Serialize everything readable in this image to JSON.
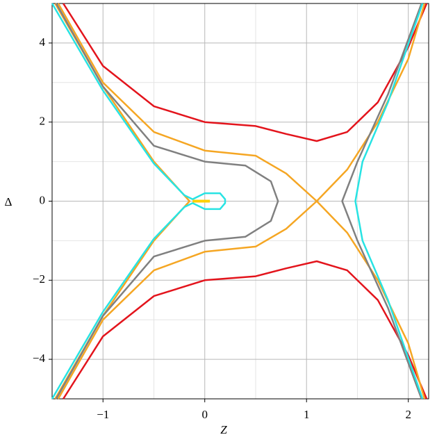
{
  "chart_data": {
    "type": "line",
    "xlabel": "Z",
    "ylabel": "Δ",
    "xlim": [
      -1.5,
      2.2
    ],
    "ylim": [
      -5,
      5
    ],
    "xticks": [
      {
        "value": -1,
        "label": "−1"
      },
      0,
      1,
      2
    ],
    "yticks": [
      {
        "value": -4,
        "label": "−4"
      },
      {
        "value": -2,
        "label": "−2"
      },
      0,
      2,
      4
    ],
    "xminor": [
      -0.5,
      0.5,
      1.5
    ],
    "yminor": [
      -3,
      -1,
      1,
      3
    ],
    "grid": true,
    "series": [
      {
        "color": "#e3141c",
        "x": [
          -1.39,
          -1,
          -0.5,
          0,
          0.5,
          0.8,
          1.1,
          1.4,
          1.7,
          2,
          2.18,
          null,
          -1.39,
          -1,
          -0.5,
          0,
          0.5,
          0.8,
          1.1,
          1.4,
          1.7,
          2,
          2.18
        ],
        "values": [
          5,
          3.42,
          2.4,
          2,
          1.9,
          1.7,
          1.52,
          1.75,
          2.5,
          3.9,
          5,
          null,
          -5,
          -3.42,
          -2.4,
          -2,
          -1.9,
          -1.7,
          -1.52,
          -1.75,
          -2.5,
          -3.9,
          -5
        ]
      },
      {
        "color": "#f5a623",
        "x": [
          -1.44,
          -1,
          -0.5,
          0,
          0.5,
          0.8,
          1.1,
          1.4,
          1.7,
          2,
          2.16,
          null,
          -1.44,
          -1,
          -0.5,
          0,
          0.5,
          0.8,
          1.1,
          1.4,
          1.7,
          2,
          2.16,
          null,
          -1.47,
          -1,
          -0.5,
          -0.15,
          -0.5,
          -1,
          -1.47
        ],
        "values": [
          5,
          3.0,
          1.75,
          1.28,
          1.15,
          0.7,
          0,
          -0.8,
          -2.0,
          -3.6,
          -5,
          null,
          -5,
          -3.0,
          -1.75,
          -1.28,
          -1.15,
          -0.7,
          0,
          0.8,
          2.0,
          3.6,
          5,
          null,
          5,
          2.9,
          1.0,
          0,
          -1.0,
          -2.9,
          -5
        ]
      },
      {
        "color": "#808080",
        "x": [
          -1.46,
          -1,
          -0.5,
          0,
          0.4,
          0.65,
          0.72,
          0.65,
          0.4,
          0,
          -0.5,
          -1,
          -1.46,
          null,
          2.13,
          1.8,
          1.5,
          1.35,
          1.5,
          1.8,
          2.13
        ],
        "values": [
          5,
          2.9,
          1.4,
          1.0,
          0.9,
          0.5,
          0,
          -0.5,
          -0.9,
          -1.0,
          -1.4,
          -2.9,
          -5,
          null,
          5,
          2.7,
          1.0,
          0,
          -1.0,
          -2.7,
          -5
        ]
      },
      {
        "color": "#27e3e3",
        "x": [
          -1.5,
          -1,
          -0.5,
          -0.2,
          -0.12,
          0,
          0.15,
          0.2,
          0.2,
          0.15,
          0,
          -0.12,
          -0.2,
          -0.5,
          -1,
          -1.5,
          null,
          2.14,
          1.8,
          1.55,
          1.48,
          1.55,
          1.8,
          2.14
        ],
        "values": [
          5,
          2.8,
          0.95,
          0.15,
          0.05,
          0.2,
          0.2,
          0.05,
          -0.05,
          -0.2,
          -0.2,
          -0.05,
          -0.15,
          -0.95,
          -2.8,
          -5,
          null,
          5,
          2.5,
          1.0,
          0,
          -1.0,
          -2.5,
          -5
        ]
      },
      {
        "color": "#ffd000",
        "x": [
          -0.12,
          0.05
        ],
        "values": [
          0,
          0
        ]
      }
    ]
  }
}
